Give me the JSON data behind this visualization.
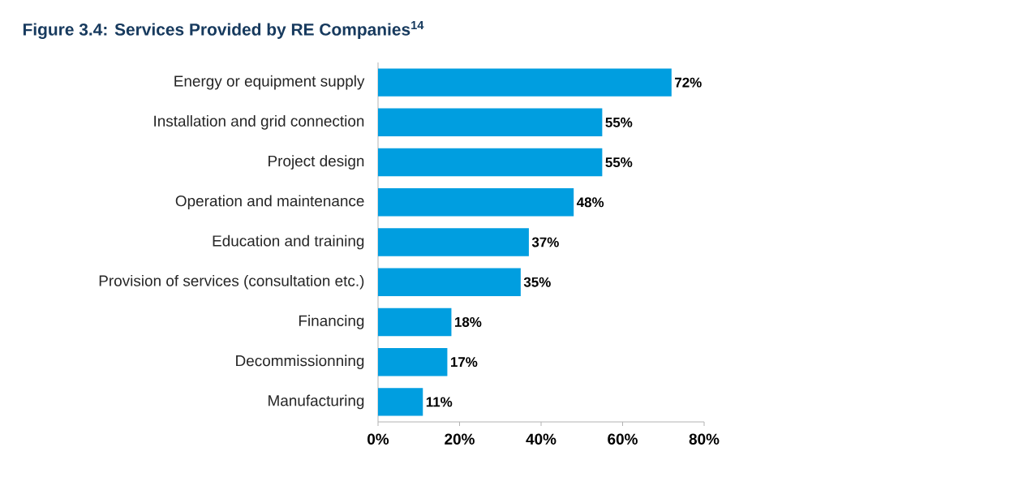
{
  "chart_data": {
    "type": "bar",
    "orientation": "horizontal",
    "title": "Figure 3.4: Services Provided by RE Companies$^{14}$",
    "categories": [
      "Energy or equipment supply",
      "Installation and grid connection",
      "Project design",
      "Operation and maintenance",
      "Education and training",
      "Provision of services (consultation etc.)",
      "Financing",
      "Decommissionning",
      "Manufacturing"
    ],
    "values": [
      72,
      55,
      55,
      48,
      37,
      35,
      18,
      17,
      11
    ],
    "value_labels": [
      "72%",
      "55%",
      "55%",
      "48%",
      "37%",
      "35%",
      "18%",
      "17%",
      "11%"
    ],
    "color": "#009ee0",
    "xlim": [
      0,
      80
    ],
    "xticks": [
      {
        "value": 0,
        "label": "0%"
      },
      {
        "value": 20,
        "label": "20%"
      },
      {
        "value": 40,
        "label": "40%"
      },
      {
        "value": 60,
        "label": "60%"
      },
      {
        "value": 80,
        "label": "80%"
      }
    ],
    "grid": false
  }
}
